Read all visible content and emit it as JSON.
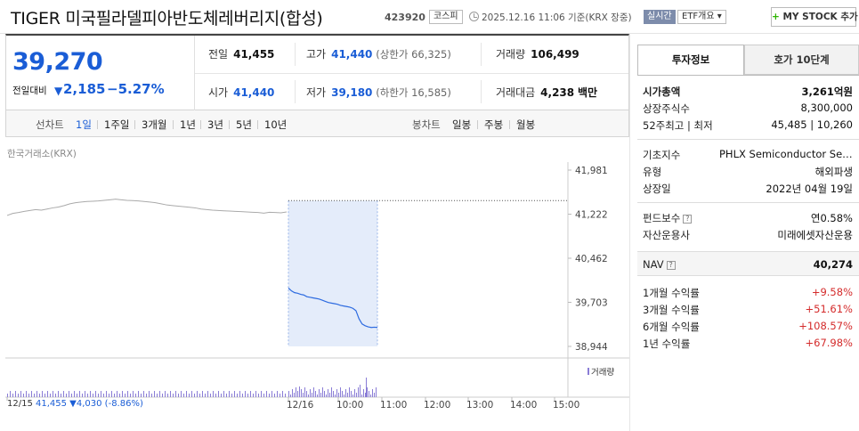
{
  "header": {
    "title": "TIGER 미국필라델피아반도체레버리지(합성)",
    "code": "423920",
    "market": "코스피",
    "timestamp": "2025.12.16 11:06 기준(KRX 장중)",
    "realtime_label": "실시간",
    "etf_label": "ETF개요 ▾",
    "mystock_label": "MY STOCK 추가",
    "mystock_plus": "+"
  },
  "price": {
    "current": "39,270",
    "change_label": "전일대비",
    "change_arrow": "▼",
    "change_value": "2,185",
    "change_pct": "−5.27%"
  },
  "stats": {
    "prev_close_label": "전일",
    "prev_close": "41,455",
    "high_label": "고가",
    "high": "41,440",
    "upper_limit": "(상한가 66,325)",
    "volume_label": "거래량",
    "volume": "106,499",
    "open_label": "시가",
    "open": "41,440",
    "low_label": "저가",
    "low": "39,180",
    "lower_limit": "(하한가 16,585)",
    "amount_label": "거래대금",
    "amount": "4,238",
    "amount_unit": "백만"
  },
  "period_bar": {
    "line_head": "선차트",
    "line_items": [
      "1일",
      "1주일",
      "3개월",
      "1년",
      "3년",
      "5년",
      "10년"
    ],
    "active_index": 0,
    "candle_head": "봉차트",
    "candle_items": [
      "일봉",
      "주봉",
      "월봉"
    ]
  },
  "chart_data": {
    "type": "line",
    "source_label": "한국거래소(KRX)",
    "y_ticks": [
      "41,981",
      "41,222",
      "40,462",
      "39,703",
      "38,944"
    ],
    "y_range": [
      38944,
      41981
    ],
    "x_ticks": [
      "12/16",
      "10:00",
      "11:00",
      "12:00",
      "13:00",
      "14:00",
      "15:00"
    ],
    "prev_day_series": [
      41200,
      41235,
      41250,
      41270,
      41285,
      41300,
      41290,
      41310,
      41330,
      41345,
      41370,
      41400,
      41420,
      41430,
      41440,
      41445,
      41450,
      41460,
      41470,
      41480,
      41470,
      41460,
      41455,
      41450,
      41440,
      41430,
      41420,
      41400,
      41380,
      41370,
      41360,
      41350,
      41340,
      41330,
      41310,
      41300,
      41290,
      41285,
      41280,
      41275,
      41270,
      41265,
      41260,
      41255,
      41250,
      41240,
      41255,
      41250,
      41245,
      41260
    ],
    "today_series": [
      39950,
      39900,
      39870,
      39860,
      39840,
      39830,
      39800,
      39790,
      39780,
      39770,
      39760,
      39740,
      39720,
      39700,
      39690,
      39680,
      39670,
      39650,
      39640,
      39630,
      39620,
      39600,
      39560,
      39420,
      39330,
      39300,
      39280,
      39270,
      39275,
      39270
    ],
    "prev_close_line": 41455,
    "volume_label": "거래량",
    "prev_day_footer_date": "12/15",
    "prev_day_footer": "41,455 ▼4,030 (-8.86%)"
  },
  "right_panel": {
    "tabs": [
      "투자정보",
      "호가 10단계"
    ],
    "rows_a": [
      {
        "k": "시가총액",
        "v": "3,261억원"
      },
      {
        "k": "상장주식수",
        "v": "8,300,000"
      },
      {
        "k": "52주최고 | 최저",
        "v": "45,485 | 10,260"
      }
    ],
    "rows_b": [
      {
        "k": "기초지수",
        "v": "PHLX Semiconductor Sector Index"
      },
      {
        "k": "유형",
        "v": "해외파생"
      },
      {
        "k": "상장일",
        "v": "2022년 04월 19일"
      }
    ],
    "rows_c": [
      {
        "k": "펀드보수",
        "v": "연0.58%"
      },
      {
        "k": "자산운용사",
        "v": "미래에셋자산운용"
      }
    ],
    "nav": {
      "k": "NAV",
      "v": "40,274"
    },
    "returns": [
      {
        "k": "1개월 수익률",
        "v": "+9.58%"
      },
      {
        "k": "3개월 수익률",
        "v": "+51.61%"
      },
      {
        "k": "6개월 수익률",
        "v": "+108.57%"
      },
      {
        "k": "1년 수익률",
        "v": "+67.98%"
      }
    ],
    "help_glyph": "?"
  }
}
